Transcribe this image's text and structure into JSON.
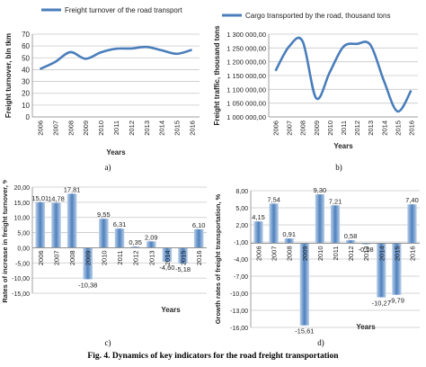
{
  "caption": "Fig. 4. Dynamics of key indicators for the road freight transportation",
  "chart_data": [
    {
      "panel": "a)",
      "type": "line",
      "legend": "Freight turnover of the road transport",
      "legend_position": "top",
      "ylabel": "Freight turnover, bln tkm",
      "xlabel": "Years",
      "categories": [
        "2006",
        "2007",
        "2008",
        "2009",
        "2010",
        "2011",
        "2012",
        "2013",
        "2014",
        "2015",
        "2016"
      ],
      "yticks": [
        "0",
        "10",
        "20",
        "30",
        "40",
        "50",
        "60",
        "70"
      ],
      "ylim": [
        0,
        70
      ],
      "grid": true,
      "color": "#4a7ebb",
      "series": [
        {
          "name": "Freight turnover of the road transport",
          "values": [
            40.5,
            46.5,
            54.8,
            49.2,
            54.6,
            57.7,
            57.9,
            59.2,
            56.4,
            53.4,
            56.8
          ]
        }
      ]
    },
    {
      "panel": "b)",
      "type": "line",
      "legend": "Cargo transported by the road, thousand tons",
      "legend_position": "top",
      "ylabel": "Freight traffic, thousand tons",
      "xlabel": "Years",
      "categories": [
        "2006",
        "2007",
        "2008",
        "2009",
        "2010",
        "2011",
        "2012",
        "2013",
        "2014",
        "2015",
        "2016"
      ],
      "yticks": [
        "1 000 000,00",
        "1 050 000,00",
        "1 100 000,00",
        "1 150 000,00",
        "1 200 000,00",
        "1 250 000,00",
        "1 300 000,00"
      ],
      "ylim": [
        1000000,
        1300000
      ],
      "grid": true,
      "color": "#4a7ebb",
      "series": [
        {
          "name": "Cargo transported by the road, thousand tons",
          "values": [
            1167000,
            1255000,
            1274000,
            1068000,
            1162000,
            1254000,
            1265000,
            1261000,
            1130000,
            1020000,
            1096000
          ]
        }
      ]
    },
    {
      "panel": "c)",
      "type": "bar",
      "ylabel": "Rates of increase in freight turnover, %",
      "xlabel": "Years",
      "categories": [
        "2006",
        "2007",
        "2008",
        "2009",
        "2010",
        "2011",
        "2012",
        "2013",
        "2014",
        "2015",
        "2016"
      ],
      "yticks": [
        "-15,00",
        "-10,00",
        "-5,00",
        "0,00",
        "5,00",
        "10,00",
        "15,00",
        "20,00"
      ],
      "ylim": [
        -15,
        20
      ],
      "grid": true,
      "values": [
        15.01,
        14.78,
        17.81,
        -10.38,
        9.55,
        6.31,
        0.35,
        2.09,
        -4.6,
        -5.18,
        6.1
      ],
      "labels": [
        "15,01",
        "14,78",
        "17,81",
        "-10,38",
        "9,55",
        "6,31",
        "0,35",
        "2,09",
        "-4,60",
        "-5,18",
        "6,10"
      ]
    },
    {
      "panel": "d)",
      "type": "bar",
      "ylabel": "Growth rates of freight transportation, %",
      "xlabel": "Years",
      "categories": [
        "2006",
        "2007",
        "2008",
        "2009",
        "2010",
        "2011",
        "2012",
        "2013",
        "2014",
        "2015",
        "2016"
      ],
      "yticks": [
        "-16,00",
        "-13,00",
        "-10,00",
        "-7,00",
        "-4,00",
        "-1,00",
        "2,00",
        "5,00",
        "8,00"
      ],
      "ylim": [
        -16,
        10
      ],
      "grid": true,
      "values": [
        4.15,
        7.54,
        0.91,
        -15.61,
        9.3,
        7.21,
        0.58,
        -0.08,
        -10.27,
        -9.79,
        7.4
      ],
      "labels": [
        "4,15",
        "7,54",
        "0,91",
        "-15,61",
        "9,30",
        "7,21",
        "0,58",
        "-0,08",
        "-10,27",
        "-9,79",
        "7,40"
      ]
    }
  ]
}
